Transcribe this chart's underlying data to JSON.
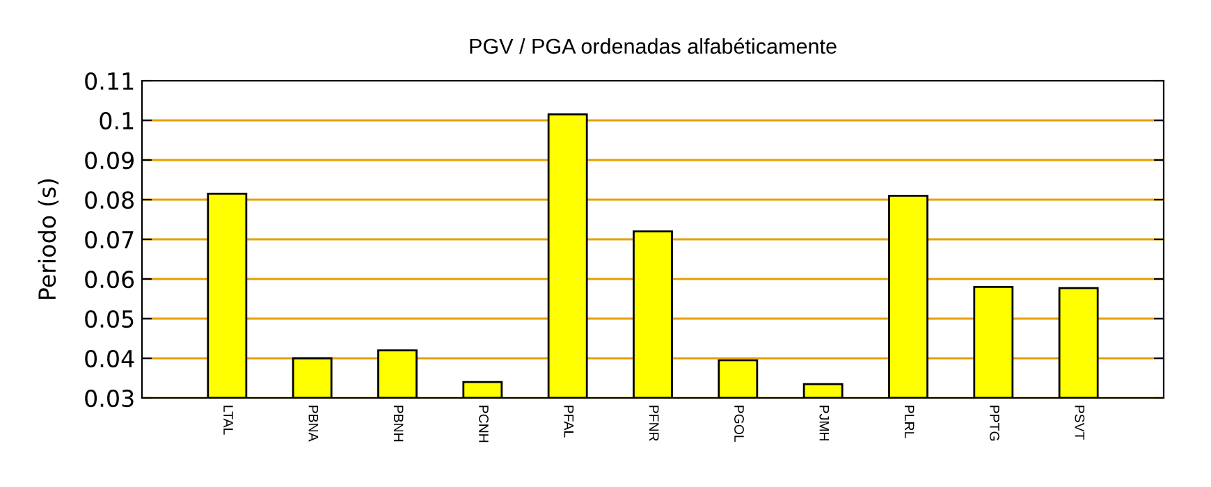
{
  "chart_data": {
    "type": "bar",
    "title": "PGV / PGA ordenadas alfabéticamente",
    "ylabel": "Periodo (s)",
    "categories": [
      "LTAL",
      "PBNA",
      "PBNH",
      "PCNH",
      "PFAL",
      "PFNR",
      "PGOL",
      "PJMH",
      "PLRL",
      "PPTG",
      "PSVT"
    ],
    "values": [
      0.0815,
      0.04,
      0.042,
      0.034,
      0.1015,
      0.072,
      0.0395,
      0.0335,
      0.081,
      0.058,
      0.0577
    ],
    "color": "#ffff00",
    "ylim": [
      0.03,
      0.11
    ],
    "yticks": [
      0.03,
      0.04,
      0.05,
      0.06,
      0.07,
      0.08,
      0.09,
      0.1,
      0.11
    ],
    "grid": "y",
    "legend": false
  }
}
